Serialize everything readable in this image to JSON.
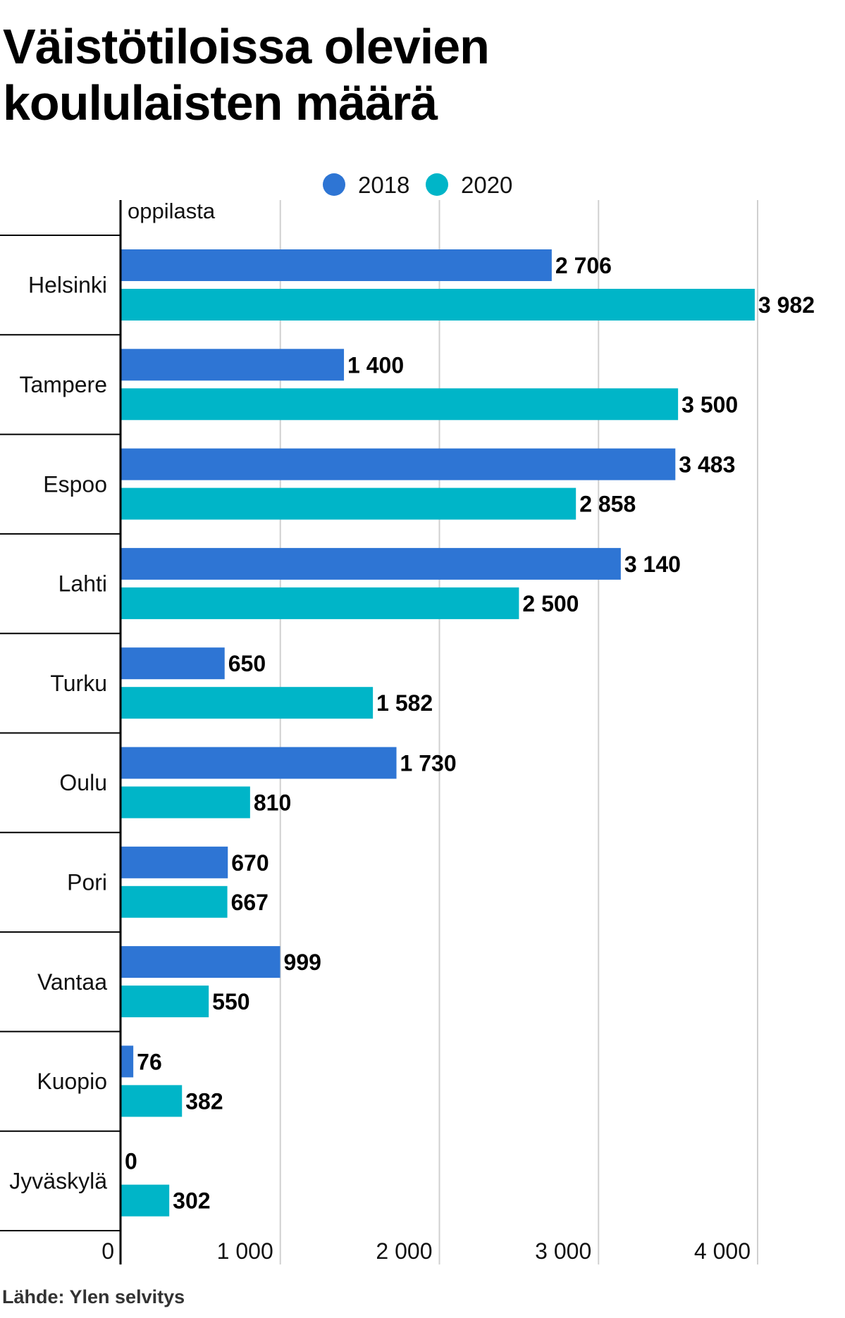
{
  "chart_data": {
    "type": "bar",
    "orientation": "horizontal",
    "title": "Väistötiloissa olevien koululaisten määrä",
    "unit_label": "oppilasta",
    "categories": [
      "Helsinki",
      "Tampere",
      "Espoo",
      "Lahti",
      "Turku",
      "Oulu",
      "Pori",
      "Vantaa",
      "Kuopio",
      "Jyväskylä"
    ],
    "series": [
      {
        "name": "2018",
        "color": "#2E75D4",
        "values": [
          2706,
          1400,
          3483,
          3140,
          650,
          1730,
          670,
          999,
          76,
          0
        ],
        "labels": [
          "2 706",
          "1 400",
          "3 483",
          "3 140",
          "650",
          "1 730",
          "670",
          "999",
          "76",
          "0"
        ]
      },
      {
        "name": "2020",
        "color": "#00B5C8",
        "values": [
          3982,
          3500,
          2858,
          2500,
          1582,
          810,
          667,
          550,
          382,
          302
        ],
        "labels": [
          "3 982",
          "3 500",
          "2 858",
          "2 500",
          "1 582",
          "810",
          "667",
          "550",
          "382",
          "302"
        ]
      }
    ],
    "xlim": [
      0,
      4000
    ],
    "xticks": [
      0,
      1000,
      2000,
      3000,
      4000
    ],
    "xtick_labels": [
      "0",
      "1 000",
      "2 000",
      "3 000",
      "4 000"
    ],
    "legend_position": "top-center",
    "grid": true
  },
  "source": "Lähde: Ylen selvitys"
}
